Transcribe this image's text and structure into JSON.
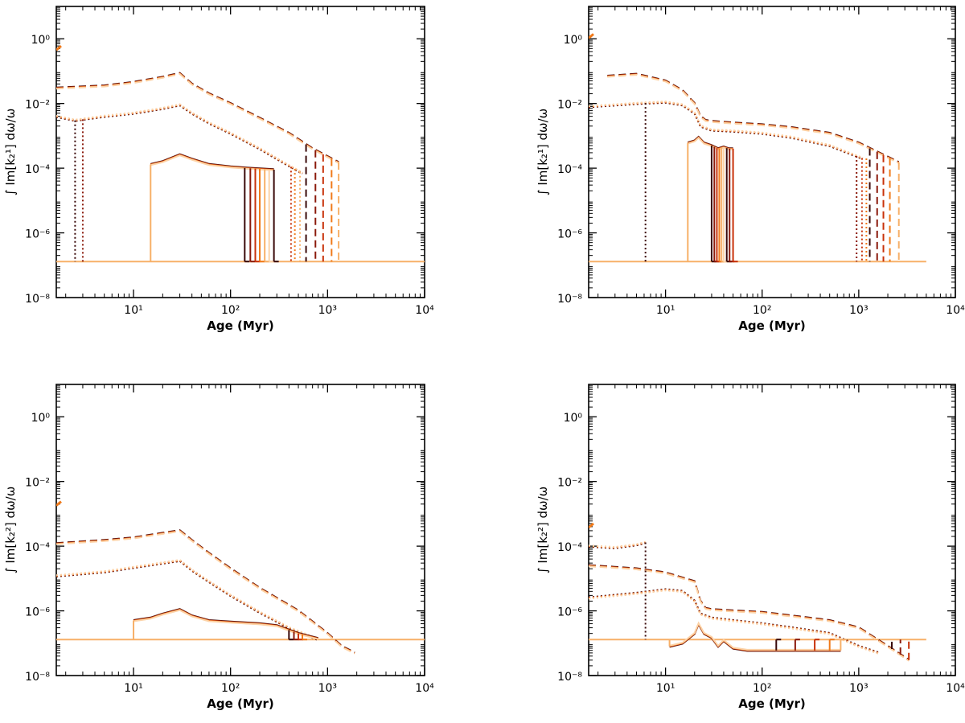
{
  "palette": [
    "#3a0a0a",
    "#8b1a0c",
    "#c8320a",
    "#f07a1a",
    "#f7b068",
    "#fcd3a8"
  ],
  "chart_data": [
    {
      "id": "panel-top-left",
      "type": "line",
      "xscale": "log",
      "yscale": "log",
      "xlim": [
        1.6,
        10000
      ],
      "ylim": [
        1e-08,
        10
      ],
      "xlabel": "Age (Myr)",
      "ylabel": "∫ Im[k₂¹] dω/ω",
      "xticks": [
        10,
        100,
        1000,
        10000
      ],
      "xtick_labels": [
        "10¹",
        "10²",
        "10³",
        "10⁴"
      ],
      "yticks": [
        1e-08,
        1e-06,
        0.0001,
        0.01,
        1
      ],
      "ytick_labels": [
        "10⁻⁸",
        "10⁻⁶",
        "10⁻⁴",
        "10⁻²",
        "10⁰"
      ],
      "floor": 1.3e-07,
      "floor_xmax": 10000,
      "series": [
        {
          "name": "dashed",
          "style": "dashed",
          "x": [
            1.6,
            5,
            10,
            20,
            30,
            40,
            60,
            100,
            200,
            400,
            700,
            1300
          ],
          "y": [
            0.03,
            0.035,
            0.045,
            0.065,
            0.085,
            0.04,
            0.02,
            0.01,
            0.0035,
            0.0012,
            0.0004,
            0.00015
          ],
          "drops": [
            600,
            750,
            900,
            1100,
            1300
          ]
        },
        {
          "name": "dotted",
          "style": "dotted",
          "x": [
            1.6,
            2.5,
            5,
            10,
            20,
            30,
            40,
            60,
            100,
            200,
            350,
            550
          ],
          "y": [
            0.004,
            0.003,
            0.004,
            0.005,
            0.007,
            0.009,
            0.005,
            0.0025,
            0.0012,
            0.0004,
            0.00015,
            7e-05
          ],
          "drops": [
            2.5,
            3,
            420,
            460,
            520
          ]
        },
        {
          "name": "solid",
          "style": "solid",
          "x": [
            15,
            20,
            30,
            40,
            60,
            100,
            150,
            200,
            280
          ],
          "y": [
            0.00013,
            0.00016,
            0.00026,
            0.00019,
            0.00013,
            0.00011,
            0.0001,
            9.5e-05,
            9e-05
          ],
          "jump_from_floor": 15,
          "drops": [
            140,
            160,
            180,
            200,
            225,
            250,
            280
          ]
        }
      ]
    },
    {
      "id": "panel-top-right",
      "type": "line",
      "xscale": "log",
      "yscale": "log",
      "xlim": [
        1.6,
        10000
      ],
      "ylim": [
        1e-08,
        10
      ],
      "xlabel": "Age (Myr)",
      "ylabel": "∫ Im[k₂¹] dω/ω",
      "xticks": [
        10,
        100,
        1000,
        10000
      ],
      "xtick_labels": [
        "10¹",
        "10²",
        "10³",
        "10⁴"
      ],
      "yticks": [
        1e-08,
        1e-06,
        0.0001,
        0.01,
        1
      ],
      "ytick_labels": [
        "10⁻⁸",
        "10⁻⁶",
        "10⁻⁴",
        "10⁻²",
        "10⁰"
      ],
      "floor": 1.3e-07,
      "floor_xmax": 5000,
      "series": [
        {
          "name": "dashed",
          "style": "dashed",
          "x": [
            2.5,
            5,
            10,
            15,
            20,
            23,
            26,
            30,
            50,
            100,
            200,
            500,
            1000,
            2600
          ],
          "y": [
            0.07,
            0.08,
            0.05,
            0.025,
            0.01,
            0.004,
            0.003,
            0.0028,
            0.0025,
            0.0022,
            0.0018,
            0.0012,
            0.0006,
            0.00015
          ],
          "drops": [
            1300,
            1550,
            1800,
            2100,
            2600
          ]
        },
        {
          "name": "dotted",
          "style": "dotted",
          "x": [
            1.6,
            3,
            5,
            10,
            15,
            20,
            23,
            30,
            50,
            100,
            200,
            500,
            1100
          ],
          "y": [
            0.008,
            0.009,
            0.01,
            0.011,
            0.009,
            0.005,
            0.002,
            0.0015,
            0.0014,
            0.0012,
            0.0009,
            0.0005,
            0.0002
          ],
          "drops": [
            6.2,
            950,
            1080,
            1200
          ]
        },
        {
          "name": "solid",
          "style": "solid",
          "x": [
            17,
            20,
            22,
            25,
            30,
            35,
            40,
            45,
            50
          ],
          "y": [
            0.0006,
            0.0007,
            0.0009,
            0.0006,
            0.0005,
            0.0004,
            0.00045,
            0.0004,
            0.0004
          ],
          "jump_from_floor": 17,
          "drops": [
            30,
            32,
            34,
            36,
            38,
            40,
            43,
            46,
            50
          ]
        }
      ]
    },
    {
      "id": "panel-bottom-left",
      "type": "line",
      "xscale": "log",
      "yscale": "log",
      "xlim": [
        1.6,
        10000
      ],
      "ylim": [
        1e-08,
        10
      ],
      "xlabel": "Age (Myr)",
      "ylabel": "∫ Im[k₂²] dω/ω",
      "xticks": [
        10,
        100,
        1000,
        10000
      ],
      "xtick_labels": [
        "10¹",
        "10²",
        "10³",
        "10⁴"
      ],
      "yticks": [
        1e-08,
        1e-06,
        0.0001,
        0.01,
        1
      ],
      "ytick_labels": [
        "10⁻⁸",
        "10⁻⁶",
        "10⁻⁴",
        "10⁻²",
        "10⁰"
      ],
      "floor": 1.3e-07,
      "floor_xmax": 10000,
      "series": [
        {
          "name": "dashed",
          "style": "dashed",
          "x": [
            1.6,
            5,
            10,
            20,
            30,
            40,
            60,
            100,
            200,
            500,
            1000,
            1400,
            1900
          ],
          "y": [
            0.00012,
            0.00015,
            0.00018,
            0.00025,
            0.0003,
            0.00015,
            6e-05,
            2e-05,
            5e-06,
            1e-06,
            2e-07,
            8e-08,
            5e-08
          ],
          "drops": []
        },
        {
          "name": "dotted",
          "style": "dotted",
          "x": [
            1.6,
            5,
            10,
            20,
            30,
            40,
            60,
            100,
            200,
            400,
            800
          ],
          "y": [
            1.2e-05,
            1.6e-05,
            2.2e-05,
            3e-05,
            3.6e-05,
            1.8e-05,
            8e-06,
            3e-06,
            9e-07,
            3e-07,
            1.3e-07
          ],
          "drops": []
        },
        {
          "name": "solid",
          "style": "solid",
          "x": [
            10,
            15,
            20,
            30,
            40,
            60,
            100,
            200,
            300,
            500,
            800
          ],
          "y": [
            5e-07,
            6e-07,
            8e-07,
            1.1e-06,
            7e-07,
            5e-07,
            4.5e-07,
            4e-07,
            3.5e-07,
            2e-07,
            1.4e-07
          ],
          "jump_from_floor": 10,
          "drops": [
            400,
            450,
            500,
            550
          ]
        }
      ]
    },
    {
      "id": "panel-bottom-right",
      "type": "line",
      "xscale": "log",
      "yscale": "log",
      "xlim": [
        1.6,
        10000
      ],
      "ylim": [
        1e-08,
        10
      ],
      "xlabel": "Age (Myr)",
      "ylabel": "∫ Im[k₂²] dω/ω",
      "xticks": [
        10,
        100,
        1000,
        10000
      ],
      "xtick_labels": [
        "10¹",
        "10²",
        "10³",
        "10⁴"
      ],
      "yticks": [
        1e-08,
        1e-06,
        0.0001,
        0.01,
        1
      ],
      "ytick_labels": [
        "10⁻⁸",
        "10⁻⁶",
        "10⁻⁴",
        "10⁻²",
        "10⁰"
      ],
      "floor": 1.3e-07,
      "floor_xmax": 5000,
      "series": [
        {
          "name": "dashed",
          "style": "dashed",
          "x": [
            1.6,
            5,
            10,
            20,
            23,
            26,
            30,
            50,
            100,
            200,
            500,
            1000,
            2000,
            3300
          ],
          "y": [
            2.5e-05,
            2e-05,
            1.5e-05,
            8e-06,
            2e-06,
            1.2e-06,
            1.1e-06,
            1e-06,
            9e-07,
            7e-07,
            5e-07,
            3e-07,
            8e-08,
            3e-08
          ],
          "drops": [
            2200,
            2700,
            3300
          ]
        },
        {
          "name": "dotted-upper",
          "style": "dotted",
          "x": [
            1.6,
            3,
            5,
            6.2
          ],
          "y": [
            0.0001,
            9e-05,
            0.00011,
            0.00013
          ],
          "drops": [
            6.2
          ]
        },
        {
          "name": "dotted",
          "style": "dotted",
          "x": [
            1.6,
            5,
            10,
            15,
            20,
            23,
            26,
            30,
            50,
            100,
            200,
            500,
            1000,
            1600
          ],
          "y": [
            2.5e-06,
            3.5e-06,
            4.5e-06,
            4e-06,
            2e-06,
            8e-07,
            7e-07,
            6e-07,
            5e-07,
            4e-07,
            3e-07,
            2e-07,
            8e-08,
            5e-08
          ],
          "drops": []
        },
        {
          "name": "solid",
          "style": "solid",
          "x": [
            11,
            15,
            20,
            22,
            25,
            30,
            35,
            40,
            50,
            70,
            100,
            200,
            400,
            650
          ],
          "y": [
            8e-08,
            1e-07,
            2e-07,
            4e-07,
            2e-07,
            1.5e-07,
            8e-08,
            1.2e-07,
            7e-08,
            6e-08,
            6e-08,
            6e-08,
            6e-08,
            6e-08
          ],
          "jump_from_floor": 11,
          "drops": [
            140,
            220,
            350,
            500,
            650
          ]
        }
      ]
    }
  ]
}
